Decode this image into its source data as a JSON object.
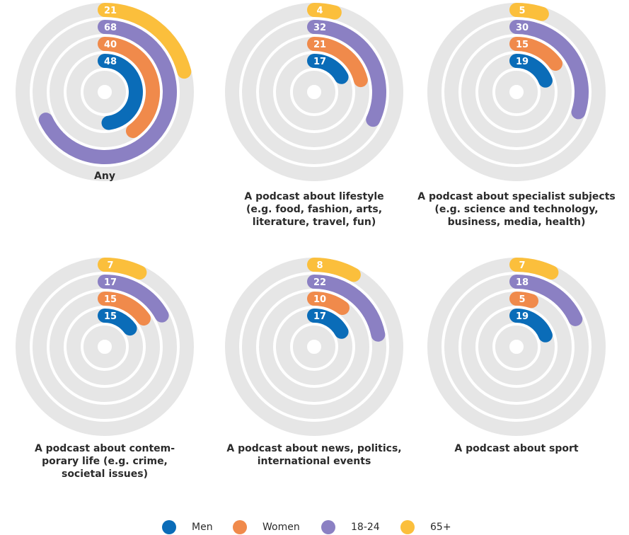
{
  "colors": {
    "track": "#e6e6e6",
    "Men": "#0a6cb8",
    "Women": "#f08a4b",
    "18-24": "#8b80c3",
    "65+": "#fbbf3c"
  },
  "legend": [
    {
      "name": "Men",
      "color": "#0a6cb8"
    },
    {
      "name": "Women",
      "color": "#f08a4b"
    },
    {
      "name": "18-24",
      "color": "#8b80c3"
    },
    {
      "name": "65+",
      "color": "#fbbf3c"
    }
  ],
  "chart_data": [
    {
      "type": "radial-bar",
      "title": "Any",
      "max": 100,
      "series": [
        {
          "name": "Men",
          "value": 48
        },
        {
          "name": "Women",
          "value": 40
        },
        {
          "name": "18-24",
          "value": 68
        },
        {
          "name": "65+",
          "value": 21
        }
      ]
    },
    {
      "type": "radial-bar",
      "title": "A podcast about lifestyle (e.g. food, fashion, arts, literature, travel, fun)",
      "max": 100,
      "series": [
        {
          "name": "Men",
          "value": 17
        },
        {
          "name": "Women",
          "value": 21
        },
        {
          "name": "18-24",
          "value": 32
        },
        {
          "name": "65+",
          "value": 4
        }
      ]
    },
    {
      "type": "radial-bar",
      "title": "A podcast about specialist subjects (e.g. science and technology, business, media, health)",
      "max": 100,
      "series": [
        {
          "name": "Men",
          "value": 19
        },
        {
          "name": "Women",
          "value": 15
        },
        {
          "name": "18-24",
          "value": 30
        },
        {
          "name": "65+",
          "value": 5
        }
      ]
    },
    {
      "type": "radial-bar",
      "title": "A podcast about contem- porary life (e.g. crime, societal issues)",
      "max": 100,
      "series": [
        {
          "name": "Men",
          "value": 15
        },
        {
          "name": "Women",
          "value": 15
        },
        {
          "name": "18-24",
          "value": 17
        },
        {
          "name": "65+",
          "value": 7
        }
      ]
    },
    {
      "type": "radial-bar",
      "title": "A podcast about news, politics, international events",
      "max": 100,
      "series": [
        {
          "name": "Men",
          "value": 17
        },
        {
          "name": "Women",
          "value": 10
        },
        {
          "name": "18-24",
          "value": 22
        },
        {
          "name": "65+",
          "value": 8
        }
      ]
    },
    {
      "type": "radial-bar",
      "title": "A podcast about sport",
      "max": 100,
      "series": [
        {
          "name": "Men",
          "value": 19
        },
        {
          "name": "Women",
          "value": 5
        },
        {
          "name": "18-24",
          "value": 18
        },
        {
          "name": "65+",
          "value": 7
        }
      ]
    }
  ],
  "captions": [
    [
      "Any"
    ],
    [
      "A podcast about lifestyle",
      "(e.g. food, fashion, arts,",
      "literature, travel, fun)"
    ],
    [
      "A podcast about specialist subjects",
      "(e.g. science and technology,",
      "business, media, health)"
    ],
    [
      "A podcast about contem-",
      "porary life (e.g. crime,",
      "societal issues)"
    ],
    [
      "A podcast about news, politics,",
      "international events"
    ],
    [
      "A podcast about sport"
    ]
  ]
}
